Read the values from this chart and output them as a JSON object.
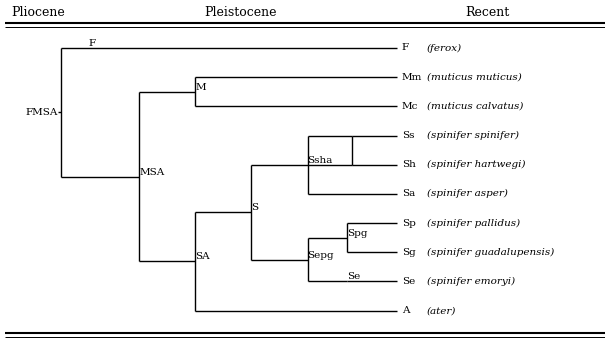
{
  "title_left": "Pliocene",
  "title_center": "Pleistocene",
  "title_right": "Recent",
  "background": "#ffffff",
  "line_color": "#000000",
  "taxa_labels": [
    "F",
    "Mm",
    "Mc",
    "Ss",
    "Sh",
    "Sa",
    "Sp",
    "Sg",
    "Se",
    "A"
  ],
  "taxa_italic": [
    "(ferox)",
    "(muticus muticus)",
    "(muticus calvatus)",
    "(spinifer spinifer)",
    "(spinifer hartwegi)",
    "(spinifer asper)",
    "(spinifer pallidus)",
    "(spinifer guadalupensis)",
    "(spinifer emoryi)",
    "(ater)"
  ],
  "node_labels": [
    "FMSA",
    "F",
    "MSA",
    "M",
    "SA",
    "S",
    "Ssha",
    "Sepg",
    "Spg",
    "Se"
  ],
  "figsize": [
    6.09,
    3.44
  ],
  "dpi": 100
}
